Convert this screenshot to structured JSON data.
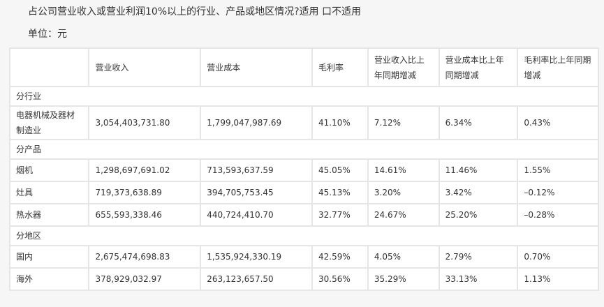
{
  "title": "占公司营业收入或营业利润10%以上的行业、产品或地区情况?适用 口不适用",
  "unit": "单位：元",
  "table": {
    "headers": [
      "",
      "营业收入",
      "营业成本",
      "毛利率",
      "营业收入比上年同期增减",
      "营业成本比上年同期增减",
      "毛利率比上年同期增减"
    ],
    "sections": [
      {
        "label": "分行业",
        "rows": [
          [
            "电器机械及器材制造业",
            "3,054,403,731.80",
            "1,799,047,987.69",
            "41.10%",
            "7.12%",
            "6.34%",
            "0.43%"
          ]
        ]
      },
      {
        "label": "分产品",
        "rows": [
          [
            "烟机",
            "1,298,697,691.02",
            "713,593,637.59",
            "45.05%",
            "14.61%",
            "11.46%",
            "1.55%"
          ],
          [
            "灶具",
            "719,373,638.89",
            "394,705,753.45",
            "45.13%",
            "3.20%",
            "3.42%",
            "–0.12%"
          ],
          [
            "热水器",
            "655,593,338.46",
            "440,724,410.70",
            "32.77%",
            "24.67%",
            "25.20%",
            "–0.28%"
          ]
        ]
      },
      {
        "label": "分地区",
        "rows": [
          [
            "国内",
            "2,675,474,698.83",
            "1,535,924,330.19",
            "42.59%",
            "4.05%",
            "2.79%",
            "0.70%"
          ],
          [
            "海外",
            "378,929,032.97",
            "263,123,657.50",
            "30.56%",
            "35.29%",
            "33.13%",
            "1.13%"
          ]
        ]
      }
    ]
  }
}
